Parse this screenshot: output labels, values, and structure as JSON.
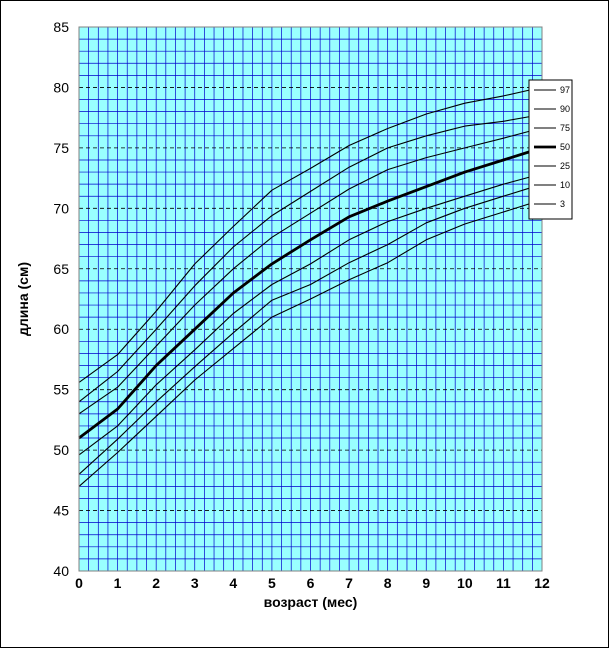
{
  "chart_data": {
    "type": "line",
    "title": "",
    "xlabel": "возраст (мес)",
    "ylabel": "длина (см)",
    "xlim": [
      0,
      12
    ],
    "ylim": [
      40,
      85
    ],
    "x_ticks": [
      0,
      1,
      2,
      3,
      4,
      5,
      6,
      7,
      8,
      9,
      10,
      11,
      12
    ],
    "y_ticks": [
      40,
      45,
      50,
      55,
      60,
      65,
      70,
      75,
      80,
      85
    ],
    "grid": true,
    "plot_background": "#99ffff",
    "grid_color": "#0000cc",
    "legend_position": "right",
    "x": [
      0,
      1,
      2,
      3,
      4,
      5,
      6,
      7,
      8,
      9,
      10,
      11,
      11.7
    ],
    "series": [
      {
        "name": "97",
        "values": [
          55.6,
          57.9,
          61.5,
          65.4,
          68.5,
          71.5,
          73.3,
          75.2,
          76.6,
          77.8,
          78.7,
          79.3,
          79.8
        ]
      },
      {
        "name": "90",
        "values": [
          54.0,
          56.5,
          60.0,
          63.6,
          66.8,
          69.4,
          71.4,
          73.4,
          75.0,
          76.0,
          76.8,
          77.2,
          77.6
        ]
      },
      {
        "name": "75",
        "values": [
          53.0,
          55.2,
          58.6,
          62.0,
          65.0,
          67.6,
          69.6,
          71.6,
          73.2,
          74.2,
          75.0,
          75.8,
          76.4
        ]
      },
      {
        "name": "50",
        "values": [
          51.0,
          53.4,
          57.0,
          60.0,
          63.0,
          65.4,
          67.4,
          69.3,
          70.6,
          71.8,
          73.0,
          74.0,
          74.7
        ]
      },
      {
        "name": "25",
        "values": [
          49.6,
          52.0,
          55.4,
          58.3,
          61.3,
          63.7,
          65.4,
          67.4,
          68.9,
          70.0,
          71.0,
          72.0,
          72.6
        ]
      },
      {
        "name": "10",
        "values": [
          48.0,
          50.9,
          54.0,
          56.9,
          59.7,
          62.4,
          63.7,
          65.5,
          67.0,
          68.8,
          70.0,
          71.0,
          71.7
        ]
      },
      {
        "name": "3",
        "values": [
          47.0,
          49.8,
          52.8,
          55.8,
          58.4,
          61.0,
          62.5,
          64.1,
          65.5,
          67.4,
          68.7,
          69.7,
          70.4
        ]
      }
    ],
    "highlight_series": "50"
  }
}
